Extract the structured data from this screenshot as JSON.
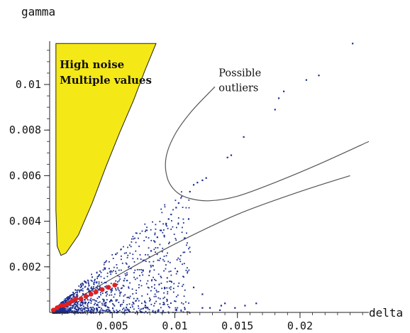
{
  "chart_data": {
    "type": "scatter",
    "xlabel": "delta",
    "ylabel": "gamma",
    "xlim": [
      0,
      0.0255
    ],
    "ylim": [
      0,
      0.0119
    ],
    "x_ticks": [
      {
        "value": 0.005,
        "label": "0.005"
      },
      {
        "value": 0.01,
        "label": "0.01"
      },
      {
        "value": 0.015,
        "label": "0.015"
      },
      {
        "value": 0.02,
        "label": "0.02"
      }
    ],
    "y_ticks": [
      {
        "value": 0.002,
        "label": "0.002"
      },
      {
        "value": 0.004,
        "label": "0.004"
      },
      {
        "value": 0.006,
        "label": "0.006"
      },
      {
        "value": 0.008,
        "label": "0.008"
      },
      {
        "value": 0.01,
        "label": "0.01"
      }
    ],
    "regions": [
      {
        "label_lines": [
          "High noise",
          "Multiple values"
        ],
        "color": "#f5e817",
        "label_at": [
          0.0008,
          0.0101
        ],
        "points": [
          [
            0.0005,
            0.0118
          ],
          [
            0.0085,
            0.0118
          ],
          [
            0.0076,
            0.0106
          ],
          [
            0.0067,
            0.0093
          ],
          [
            0.0056,
            0.0079
          ],
          [
            0.0045,
            0.0064
          ],
          [
            0.0034,
            0.0048
          ],
          [
            0.0023,
            0.0034
          ],
          [
            0.0013,
            0.0026
          ],
          [
            0.0009,
            0.0025
          ],
          [
            0.0006,
            0.0029
          ],
          [
            0.0005,
            0.0045
          ],
          [
            0.0005,
            0.008
          ],
          [
            0.0005,
            0.0118
          ]
        ]
      }
    ],
    "annotations": [
      {
        "lines": [
          "Possible",
          "outliers"
        ],
        "at": [
          0.0135,
          0.0098
        ]
      }
    ],
    "curves": [
      {
        "name": "",
        "color": "#555555",
        "points": [
          [
            0.0132,
            0.0099
          ],
          [
            0.0113,
            0.0088
          ],
          [
            0.01,
            0.0078
          ],
          [
            0.0093,
            0.0068
          ],
          [
            0.0094,
            0.0059
          ],
          [
            0.0101,
            0.0053
          ],
          [
            0.0112,
            0.005
          ],
          [
            0.0128,
            0.0049
          ],
          [
            0.015,
            0.0051
          ],
          [
            0.018,
            0.0057
          ],
          [
            0.0215,
            0.0065
          ],
          [
            0.0255,
            0.0075
          ]
        ]
      },
      {
        "name": "",
        "color": "#555555",
        "points": [
          [
            0.0025,
            0.0007
          ],
          [
            0.006,
            0.0018
          ],
          [
            0.01,
            0.003
          ],
          [
            0.015,
            0.0043
          ],
          [
            0.02,
            0.0053
          ],
          [
            0.024,
            0.006
          ]
        ]
      }
    ],
    "series": [
      {
        "color": "#1a2d8f",
        "points": [
          [
            0.0242,
            0.0118
          ],
          [
            0.0215,
            0.0104
          ],
          [
            0.0205,
            0.0102
          ],
          [
            0.0187,
            0.0097
          ],
          [
            0.0183,
            0.0094
          ],
          [
            0.018,
            0.0089
          ],
          [
            0.0155,
            0.0077
          ],
          [
            0.0145,
            0.0069
          ],
          [
            0.0142,
            0.0068
          ],
          [
            0.0125,
            0.0059
          ],
          [
            0.0122,
            0.0058
          ],
          [
            0.0118,
            0.0057
          ],
          [
            0.0115,
            0.0056
          ],
          [
            0.0112,
            0.0053
          ],
          [
            0.0111,
            0.0041
          ],
          [
            0.0103,
            0.0048
          ],
          [
            0.0101,
            0.0046
          ],
          [
            0.0097,
            0.0043
          ],
          [
            0.0095,
            0.0041
          ],
          [
            0.0093,
            0.0039
          ],
          [
            0.0089,
            0.0036
          ],
          [
            0.0086,
            0.0033
          ],
          [
            0.0084,
            0.0031
          ],
          [
            0.0081,
            0.0027
          ],
          [
            0.0102,
            0.0018
          ],
          [
            0.0115,
            0.0011
          ],
          [
            0.0122,
            0.0008
          ],
          [
            0.0128,
            0.0002
          ],
          [
            0.0137,
            0.0003
          ],
          [
            0.0148,
            0.0002
          ],
          [
            0.0156,
            0.0003
          ],
          [
            0.0165,
            0.0004
          ],
          [
            0.0122,
            0.0002
          ],
          [
            0.0136,
            0.0001
          ],
          [
            0.014,
            0.0004
          ]
        ]
      },
      {
        "color": "#1a2d8f",
        "scatter_cloud": {
          "count": 1700,
          "x_range": [
            0.0002,
            0.0112
          ],
          "slope_max": 0.52,
          "density_decay": 2.6
        }
      },
      {
        "color": "#e02020",
        "points": [
          [
            0.0003,
            0.0001
          ],
          [
            0.0006,
            0.0002
          ],
          [
            0.0009,
            0.0003
          ],
          [
            0.0012,
            0.0003
          ],
          [
            0.0015,
            0.0004
          ],
          [
            0.0018,
            0.0005
          ],
          [
            0.0021,
            0.0006
          ],
          [
            0.0025,
            0.0006
          ],
          [
            0.0029,
            0.0007
          ],
          [
            0.0033,
            0.0008
          ],
          [
            0.0037,
            0.0009
          ],
          [
            0.0042,
            0.001
          ],
          [
            0.0047,
            0.0011
          ],
          [
            0.0052,
            0.0012
          ]
        ]
      }
    ]
  }
}
